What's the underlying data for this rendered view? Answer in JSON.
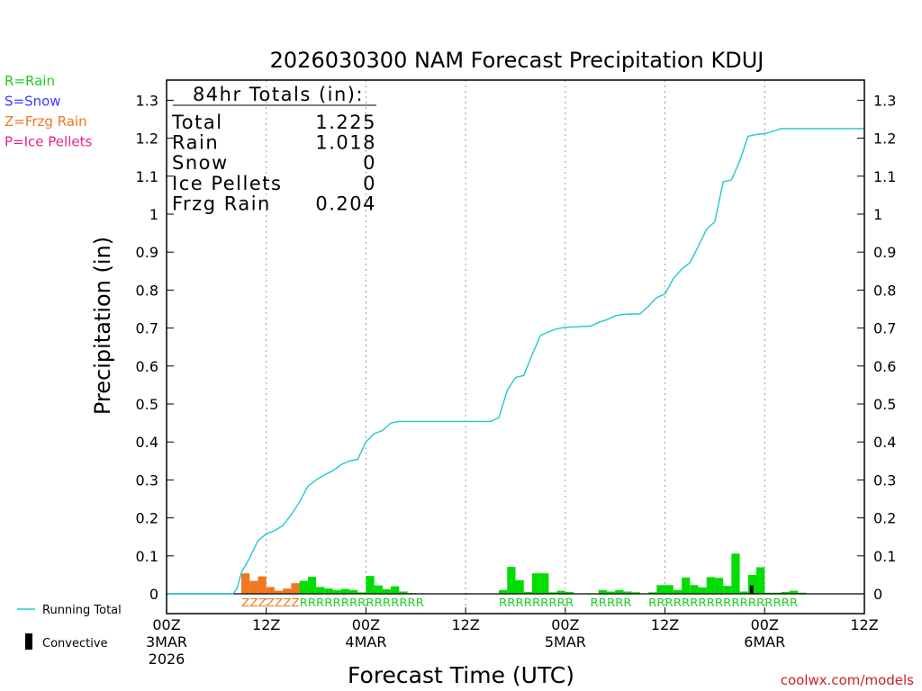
{
  "chart_data": {
    "type": "bar",
    "title": "2026030300 NAM Forecast Precipitation KDUJ",
    "xlabel": "Forecast Time (UTC)",
    "ylabel": "Precipitation (in)",
    "ylim": [
      0,
      1.35
    ],
    "xlim_hours": [
      0,
      84
    ],
    "y_ticks": [
      "0",
      "0.1",
      "0.2",
      "0.3",
      "0.4",
      "0.5",
      "0.6",
      "0.7",
      "0.8",
      "0.9",
      "1",
      "1.1",
      "1.2",
      "1.3"
    ],
    "x_ticks": [
      {
        "hour": 0,
        "line1": "00Z",
        "line2": "3MAR",
        "line3": "2026"
      },
      {
        "hour": 12,
        "line1": "12Z",
        "line2": "",
        "line3": ""
      },
      {
        "hour": 24,
        "line1": "00Z",
        "line2": "4MAR",
        "line3": ""
      },
      {
        "hour": 36,
        "line1": "12Z",
        "line2": "",
        "line3": ""
      },
      {
        "hour": 48,
        "line1": "00Z",
        "line2": "5MAR",
        "line3": ""
      },
      {
        "hour": 60,
        "line1": "12Z",
        "line2": "",
        "line3": ""
      },
      {
        "hour": 72,
        "line1": "00Z",
        "line2": "6MAR",
        "line3": ""
      },
      {
        "hour": 84,
        "line1": "12Z",
        "line2": "",
        "line3": ""
      }
    ],
    "gridlines_hours": [
      12,
      24,
      36,
      48,
      60,
      72
    ],
    "legend_types": [
      {
        "code": "R",
        "label": "R=Rain",
        "color": "#22cc22"
      },
      {
        "code": "S",
        "label": "S=Snow",
        "color": "#3b3bff"
      },
      {
        "code": "Z",
        "label": "Z=Frzg Rain",
        "color": "#f07820"
      },
      {
        "code": "P",
        "label": "P=Ice Pellets",
        "color": "#ee1f8f"
      }
    ],
    "legend_bottom": {
      "running_total": "Running Total",
      "convective": "Convective"
    },
    "colors": {
      "rain": "#00dd00",
      "frzg": "#f07820",
      "running": "#22c8d0",
      "convective": "#000000",
      "grid": "#999999"
    },
    "totals": {
      "header": "84hr Totals (in):",
      "rows": [
        {
          "label": "Total",
          "value": "1.225"
        },
        {
          "label": "Rain",
          "value": "1.018"
        },
        {
          "label": "Snow",
          "value": "0"
        },
        {
          "label": "Ice Pellets",
          "value": "0"
        },
        {
          "label": "Frzg Rain",
          "value": "0.204"
        }
      ]
    },
    "precip_bars": [
      {
        "hour": 9,
        "value": 0.054,
        "type": "Z"
      },
      {
        "hour": 10,
        "value": 0.034,
        "type": "Z"
      },
      {
        "hour": 11,
        "value": 0.046,
        "type": "Z"
      },
      {
        "hour": 12,
        "value": 0.018,
        "type": "Z"
      },
      {
        "hour": 13,
        "value": 0.008,
        "type": "Z"
      },
      {
        "hour": 14,
        "value": 0.014,
        "type": "Z"
      },
      {
        "hour": 15,
        "value": 0.028,
        "type": "Z"
      },
      {
        "hour": 16,
        "value": 0.034,
        "type": "R"
      },
      {
        "hour": 17,
        "value": 0.045,
        "type": "R"
      },
      {
        "hour": 18,
        "value": 0.018,
        "type": "R"
      },
      {
        "hour": 19,
        "value": 0.014,
        "type": "R"
      },
      {
        "hour": 20,
        "value": 0.01,
        "type": "R"
      },
      {
        "hour": 21,
        "value": 0.013,
        "type": "R"
      },
      {
        "hour": 22,
        "value": 0.01,
        "type": "R"
      },
      {
        "hour": 23,
        "value": 0.004,
        "type": "R"
      },
      {
        "hour": 24,
        "value": 0.047,
        "type": "R"
      },
      {
        "hour": 25,
        "value": 0.022,
        "type": "R"
      },
      {
        "hour": 26,
        "value": 0.012,
        "type": "R"
      },
      {
        "hour": 27,
        "value": 0.02,
        "type": "R"
      },
      {
        "hour": 28,
        "value": 0.006,
        "type": "R"
      },
      {
        "hour": 29,
        "value": 0.002,
        "type": "R"
      },
      {
        "hour": 30,
        "value": 0.001,
        "type": "R"
      },
      {
        "hour": 40,
        "value": 0.01,
        "type": "R"
      },
      {
        "hour": 41,
        "value": 0.071,
        "type": "R"
      },
      {
        "hour": 42,
        "value": 0.036,
        "type": "R"
      },
      {
        "hour": 43,
        "value": 0.005,
        "type": "R"
      },
      {
        "hour": 44,
        "value": 0.054,
        "type": "R"
      },
      {
        "hour": 45,
        "value": 0.054,
        "type": "R"
      },
      {
        "hour": 46,
        "value": 0.004,
        "type": "R"
      },
      {
        "hour": 47,
        "value": 0.008,
        "type": "R"
      },
      {
        "hour": 48,
        "value": 0.005,
        "type": "R"
      },
      {
        "hour": 52,
        "value": 0.01,
        "type": "R"
      },
      {
        "hour": 53,
        "value": 0.006,
        "type": "R"
      },
      {
        "hour": 54,
        "value": 0.01,
        "type": "R"
      },
      {
        "hour": 55,
        "value": 0.006,
        "type": "R"
      },
      {
        "hour": 56,
        "value": 0.004,
        "type": "R"
      },
      {
        "hour": 58,
        "value": 0.004,
        "type": "R"
      },
      {
        "hour": 59,
        "value": 0.023,
        "type": "R"
      },
      {
        "hour": 60,
        "value": 0.023,
        "type": "R"
      },
      {
        "hour": 61,
        "value": 0.01,
        "type": "R"
      },
      {
        "hour": 62,
        "value": 0.043,
        "type": "R"
      },
      {
        "hour": 63,
        "value": 0.023,
        "type": "R"
      },
      {
        "hour": 64,
        "value": 0.017,
        "type": "R"
      },
      {
        "hour": 65,
        "value": 0.044,
        "type": "R"
      },
      {
        "hour": 66,
        "value": 0.042,
        "type": "R"
      },
      {
        "hour": 67,
        "value": 0.021,
        "type": "R"
      },
      {
        "hour": 68,
        "value": 0.106,
        "type": "R"
      },
      {
        "hour": 69,
        "value": 0.006,
        "type": "R"
      },
      {
        "hour": 70,
        "value": 0.05,
        "type": "R"
      },
      {
        "hour": 71,
        "value": 0.07,
        "type": "R"
      },
      {
        "hour": 72,
        "value": 0.003,
        "type": "R"
      },
      {
        "hour": 73,
        "value": 0.003,
        "type": "R"
      },
      {
        "hour": 74,
        "value": 0.005,
        "type": "R"
      },
      {
        "hour": 75,
        "value": 0.008,
        "type": "R"
      },
      {
        "hour": 76,
        "value": 0.003,
        "type": "R"
      }
    ],
    "convective_bars": [
      {
        "hour": 70,
        "value": 0.022
      }
    ],
    "type_strings": [
      {
        "start_hour": 9,
        "text": "ZZZZZZZ",
        "type": "Z"
      },
      {
        "start_hour": 16,
        "text": "RRRRRRRRRRRRRRR",
        "type": "R"
      },
      {
        "start_hour": 40,
        "text": "RRRRRRRRR",
        "type": "R"
      },
      {
        "start_hour": 51,
        "text": "RRRRR",
        "type": "R"
      },
      {
        "start_hour": 58,
        "text": "RRRRRRRRRRRRRRRRRR",
        "type": "R"
      }
    ],
    "running_total": {
      "x": [
        0,
        8,
        8.5,
        9,
        10,
        11,
        12,
        13,
        14,
        15,
        16,
        17,
        18,
        19,
        20,
        21,
        22,
        23,
        24,
        25,
        26,
        27,
        28,
        29,
        30,
        31,
        32,
        33,
        34,
        35,
        36,
        37,
        38,
        39,
        40,
        41,
        42,
        43,
        44,
        45,
        46,
        47,
        48,
        49,
        50,
        51,
        52,
        53,
        54,
        55,
        56,
        57,
        58,
        59,
        60,
        61,
        62,
        63,
        64,
        65,
        66,
        67,
        68,
        69,
        70,
        71,
        72,
        73,
        74,
        75,
        76,
        77,
        78,
        79,
        80,
        81,
        82,
        83,
        84
      ],
      "y": [
        0,
        0,
        0.015,
        0.055,
        0.095,
        0.14,
        0.158,
        0.166,
        0.18,
        0.208,
        0.242,
        0.283,
        0.3,
        0.313,
        0.324,
        0.34,
        0.35,
        0.354,
        0.4,
        0.422,
        0.43,
        0.45,
        0.454,
        0.454,
        0.454,
        0.454,
        0.454,
        0.454,
        0.454,
        0.454,
        0.454,
        0.454,
        0.454,
        0.454,
        0.464,
        0.535,
        0.57,
        0.575,
        0.63,
        0.68,
        0.69,
        0.698,
        0.702,
        0.703,
        0.704,
        0.705,
        0.715,
        0.722,
        0.732,
        0.736,
        0.737,
        0.737,
        0.757,
        0.78,
        0.79,
        0.83,
        0.855,
        0.872,
        0.915,
        0.96,
        0.98,
        1.085,
        1.09,
        1.14,
        1.205,
        1.21,
        1.212,
        1.218,
        1.225,
        1.225,
        1.225,
        1.225,
        1.225,
        1.225,
        1.225,
        1.225,
        1.225,
        1.225,
        1.225
      ]
    },
    "credit": "coolwx.com/models"
  }
}
